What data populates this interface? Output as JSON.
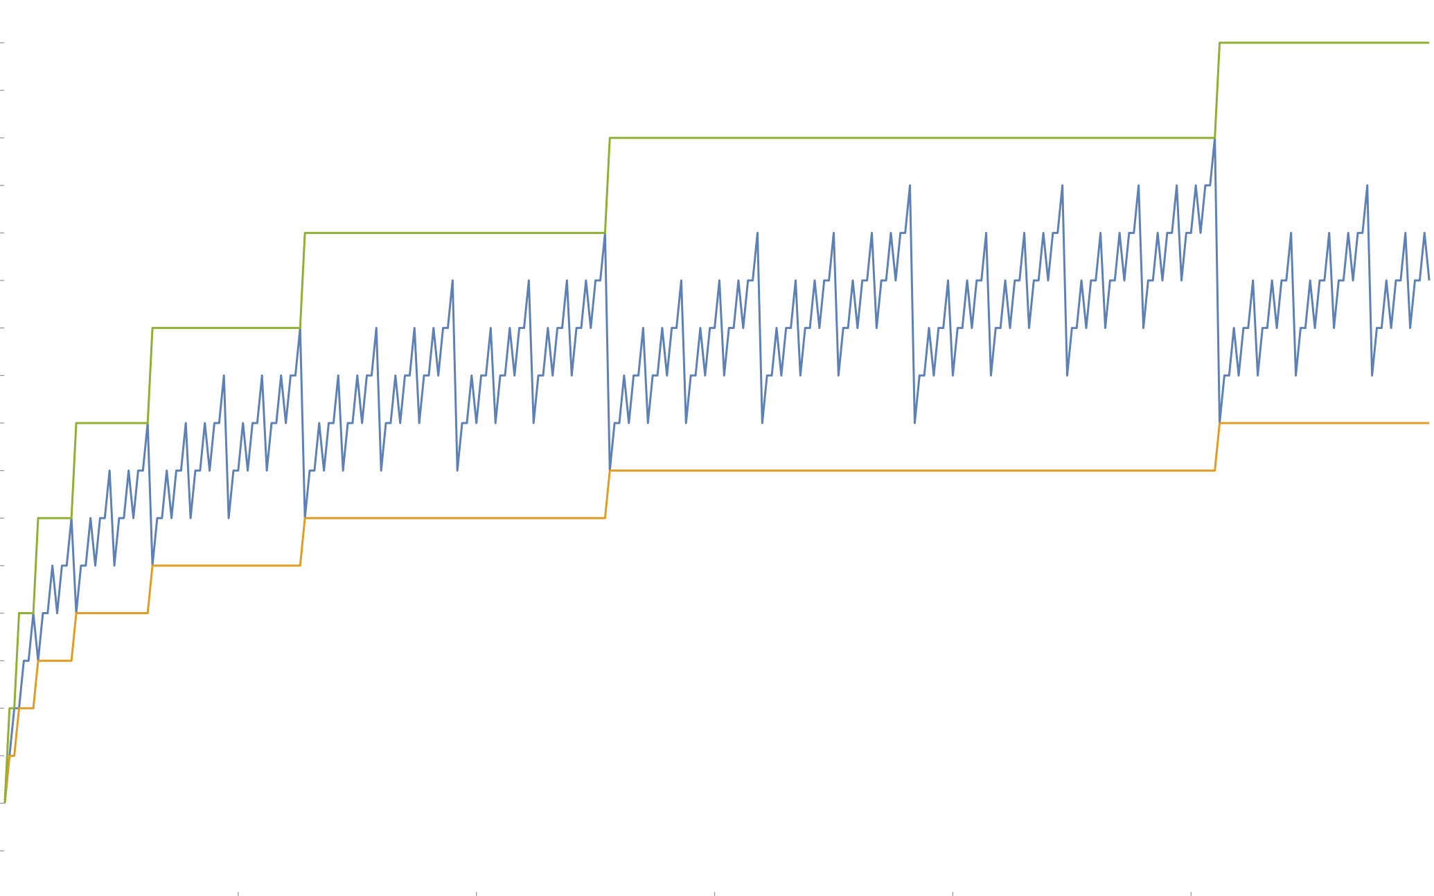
{
  "chart_data": {
    "type": "line",
    "xlim": [
      0,
      301
    ],
    "ylim": [
      -1.95,
      16.9
    ],
    "xticks": [
      50,
      100,
      150,
      200,
      250
    ],
    "yticks": [
      -1,
      0,
      1,
      2,
      3,
      4,
      5,
      6,
      7,
      8,
      9,
      10,
      11,
      12,
      13,
      14,
      15,
      16
    ],
    "x": [
      1,
      2,
      3,
      4,
      5,
      6,
      7,
      8,
      9,
      10,
      11,
      12,
      13,
      14,
      15,
      16,
      17,
      18,
      19,
      20,
      21,
      22,
      23,
      24,
      25,
      26,
      27,
      28,
      29,
      30,
      31,
      32,
      33,
      34,
      35,
      36,
      37,
      38,
      39,
      40,
      41,
      42,
      43,
      44,
      45,
      46,
      47,
      48,
      49,
      50,
      51,
      52,
      53,
      54,
      55,
      56,
      57,
      58,
      59,
      60,
      61,
      62,
      63,
      64,
      65,
      66,
      67,
      68,
      69,
      70,
      71,
      72,
      73,
      74,
      75,
      76,
      77,
      78,
      79,
      80,
      81,
      82,
      83,
      84,
      85,
      86,
      87,
      88,
      89,
      90,
      91,
      92,
      93,
      94,
      95,
      96,
      97,
      98,
      99,
      100,
      101,
      102,
      103,
      104,
      105,
      106,
      107,
      108,
      109,
      110,
      111,
      112,
      113,
      114,
      115,
      116,
      117,
      118,
      119,
      120,
      121,
      122,
      123,
      124,
      125,
      126,
      127,
      128,
      129,
      130,
      131,
      132,
      133,
      134,
      135,
      136,
      137,
      138,
      139,
      140,
      141,
      142,
      143,
      144,
      145,
      146,
      147,
      148,
      149,
      150,
      151,
      152,
      153,
      154,
      155,
      156,
      157,
      158,
      159,
      160,
      161,
      162,
      163,
      164,
      165,
      166,
      167,
      168,
      169,
      170,
      171,
      172,
      173,
      174,
      175,
      176,
      177,
      178,
      179,
      180,
      181,
      182,
      183,
      184,
      185,
      186,
      187,
      188,
      189,
      190,
      191,
      192,
      193,
      194,
      195,
      196,
      197,
      198,
      199,
      200,
      201,
      202,
      203,
      204,
      205,
      206,
      207,
      208,
      209,
      210,
      211,
      212,
      213,
      214,
      215,
      216,
      217,
      218,
      219,
      220,
      221,
      222,
      223,
      224,
      225,
      226,
      227,
      228,
      229,
      230,
      231,
      232,
      233,
      234,
      235,
      236,
      237,
      238,
      239,
      240,
      241,
      242,
      243,
      244,
      245,
      246,
      247,
      248,
      249,
      250,
      251,
      252,
      253,
      254,
      255,
      256,
      257,
      258,
      259,
      260,
      261,
      262,
      263,
      264,
      265,
      266,
      267,
      268,
      269,
      270,
      271,
      272,
      273,
      274,
      275,
      276,
      277,
      278,
      279,
      280,
      281,
      282,
      283,
      284,
      285,
      286,
      287,
      288,
      289,
      290,
      291,
      292,
      293,
      294,
      295,
      296,
      297,
      298,
      299,
      300
    ],
    "series": [
      {
        "color": "#5e81b5",
        "values": [
          0,
          1,
          2,
          2,
          3,
          3,
          4,
          3,
          4,
          4,
          5,
          4,
          5,
          5,
          6,
          4,
          5,
          5,
          6,
          5,
          6,
          6,
          7,
          5,
          6,
          6,
          7,
          6,
          7,
          7,
          8,
          5,
          6,
          6,
          7,
          6,
          7,
          7,
          8,
          6,
          7,
          7,
          8,
          7,
          8,
          8,
          9,
          6,
          7,
          7,
          8,
          7,
          8,
          8,
          9,
          7,
          8,
          8,
          9,
          8,
          9,
          9,
          10,
          6,
          7,
          7,
          8,
          7,
          8,
          8,
          9,
          7,
          8,
          8,
          9,
          8,
          9,
          9,
          10,
          7,
          8,
          8,
          9,
          8,
          9,
          9,
          10,
          8,
          9,
          9,
          10,
          9,
          10,
          10,
          11,
          7,
          8,
          8,
          9,
          8,
          9,
          9,
          10,
          8,
          9,
          9,
          10,
          9,
          10,
          10,
          11,
          8,
          9,
          9,
          10,
          9,
          10,
          10,
          11,
          9,
          10,
          10,
          11,
          10,
          11,
          11,
          12,
          7,
          8,
          8,
          9,
          8,
          9,
          9,
          10,
          8,
          9,
          9,
          10,
          9,
          10,
          10,
          11,
          8,
          9,
          9,
          10,
          9,
          10,
          10,
          11,
          9,
          10,
          10,
          11,
          10,
          11,
          11,
          12,
          8,
          9,
          9,
          10,
          9,
          10,
          10,
          11,
          9,
          10,
          10,
          11,
          10,
          11,
          11,
          12,
          9,
          10,
          10,
          11,
          10,
          11,
          11,
          12,
          10,
          11,
          11,
          12,
          11,
          12,
          12,
          13,
          8,
          9,
          9,
          10,
          9,
          10,
          10,
          11,
          9,
          10,
          10,
          11,
          10,
          11,
          11,
          12,
          9,
          10,
          10,
          11,
          10,
          11,
          11,
          12,
          10,
          11,
          11,
          12,
          11,
          12,
          12,
          13,
          9,
          10,
          10,
          11,
          10,
          11,
          11,
          12,
          10,
          11,
          11,
          12,
          11,
          12,
          12,
          13,
          10,
          11,
          11,
          12,
          11,
          12,
          12,
          13,
          11,
          12,
          12,
          13,
          12,
          13,
          13,
          14,
          8,
          9,
          9,
          10,
          9,
          10,
          10,
          11,
          9,
          10,
          10,
          11,
          10,
          11,
          11,
          12,
          9,
          10,
          10,
          11,
          10,
          11,
          11,
          12,
          10,
          11,
          11,
          12,
          11,
          12,
          12,
          13,
          9,
          10,
          10,
          11,
          10,
          11,
          11,
          12,
          10,
          11,
          11,
          12,
          11
        ]
      },
      {
        "color": "#e19c24",
        "values": [
          0,
          1,
          1,
          2,
          2,
          2,
          2,
          3,
          3,
          3,
          3,
          3,
          3,
          3,
          3,
          4,
          4,
          4,
          4,
          4,
          4,
          4,
          4,
          4,
          4,
          4,
          4,
          4,
          4,
          4,
          4,
          5,
          5,
          5,
          5,
          5,
          5,
          5,
          5,
          5,
          5,
          5,
          5,
          5,
          5,
          5,
          5,
          5,
          5,
          5,
          5,
          5,
          5,
          5,
          5,
          5,
          5,
          5,
          5,
          5,
          5,
          5,
          5,
          6,
          6,
          6,
          6,
          6,
          6,
          6,
          6,
          6,
          6,
          6,
          6,
          6,
          6,
          6,
          6,
          6,
          6,
          6,
          6,
          6,
          6,
          6,
          6,
          6,
          6,
          6,
          6,
          6,
          6,
          6,
          6,
          6,
          6,
          6,
          6,
          6,
          6,
          6,
          6,
          6,
          6,
          6,
          6,
          6,
          6,
          6,
          6,
          6,
          6,
          6,
          6,
          6,
          6,
          6,
          6,
          6,
          6,
          6,
          6,
          6,
          6,
          6,
          6,
          7,
          7,
          7,
          7,
          7,
          7,
          7,
          7,
          7,
          7,
          7,
          7,
          7,
          7,
          7,
          7,
          7,
          7,
          7,
          7,
          7,
          7,
          7,
          7,
          7,
          7,
          7,
          7,
          7,
          7,
          7,
          7,
          7,
          7,
          7,
          7,
          7,
          7,
          7,
          7,
          7,
          7,
          7,
          7,
          7,
          7,
          7,
          7,
          7,
          7,
          7,
          7,
          7,
          7,
          7,
          7,
          7,
          7,
          7,
          7,
          7,
          7,
          7,
          7,
          7,
          7,
          7,
          7,
          7,
          7,
          7,
          7,
          7,
          7,
          7,
          7,
          7,
          7,
          7,
          7,
          7,
          7,
          7,
          7,
          7,
          7,
          7,
          7,
          7,
          7,
          7,
          7,
          7,
          7,
          7,
          7,
          7,
          7,
          7,
          7,
          7,
          7,
          7,
          7,
          7,
          7,
          7,
          7,
          7,
          7,
          7,
          7,
          7,
          7,
          7,
          7,
          7,
          7,
          7,
          7,
          7,
          7,
          7,
          7,
          7,
          7,
          7,
          7,
          8,
          8,
          8,
          8,
          8,
          8,
          8,
          8,
          8,
          8,
          8,
          8,
          8,
          8,
          8,
          8,
          8,
          8,
          8,
          8,
          8,
          8,
          8,
          8,
          8,
          8,
          8,
          8,
          8,
          8,
          8,
          8,
          8,
          8,
          8,
          8,
          8,
          8,
          8,
          8,
          8,
          8,
          8,
          8,
          8
        ]
      },
      {
        "color": "#8fb032",
        "values": [
          0,
          2,
          2,
          4,
          4,
          4,
          4,
          6,
          6,
          6,
          6,
          6,
          6,
          6,
          6,
          8,
          8,
          8,
          8,
          8,
          8,
          8,
          8,
          8,
          8,
          8,
          8,
          8,
          8,
          8,
          8,
          10,
          10,
          10,
          10,
          10,
          10,
          10,
          10,
          10,
          10,
          10,
          10,
          10,
          10,
          10,
          10,
          10,
          10,
          10,
          10,
          10,
          10,
          10,
          10,
          10,
          10,
          10,
          10,
          10,
          10,
          10,
          10,
          12,
          12,
          12,
          12,
          12,
          12,
          12,
          12,
          12,
          12,
          12,
          12,
          12,
          12,
          12,
          12,
          12,
          12,
          12,
          12,
          12,
          12,
          12,
          12,
          12,
          12,
          12,
          12,
          12,
          12,
          12,
          12,
          12,
          12,
          12,
          12,
          12,
          12,
          12,
          12,
          12,
          12,
          12,
          12,
          12,
          12,
          12,
          12,
          12,
          12,
          12,
          12,
          12,
          12,
          12,
          12,
          12,
          12,
          12,
          12,
          12,
          12,
          12,
          12,
          14,
          14,
          14,
          14,
          14,
          14,
          14,
          14,
          14,
          14,
          14,
          14,
          14,
          14,
          14,
          14,
          14,
          14,
          14,
          14,
          14,
          14,
          14,
          14,
          14,
          14,
          14,
          14,
          14,
          14,
          14,
          14,
          14,
          14,
          14,
          14,
          14,
          14,
          14,
          14,
          14,
          14,
          14,
          14,
          14,
          14,
          14,
          14,
          14,
          14,
          14,
          14,
          14,
          14,
          14,
          14,
          14,
          14,
          14,
          14,
          14,
          14,
          14,
          14,
          14,
          14,
          14,
          14,
          14,
          14,
          14,
          14,
          14,
          14,
          14,
          14,
          14,
          14,
          14,
          14,
          14,
          14,
          14,
          14,
          14,
          14,
          14,
          14,
          14,
          14,
          14,
          14,
          14,
          14,
          14,
          14,
          14,
          14,
          14,
          14,
          14,
          14,
          14,
          14,
          14,
          14,
          14,
          14,
          14,
          14,
          14,
          14,
          14,
          14,
          14,
          14,
          14,
          14,
          14,
          14,
          14,
          14,
          14,
          14,
          14,
          14,
          14,
          14,
          16,
          16,
          16,
          16,
          16,
          16,
          16,
          16,
          16,
          16,
          16,
          16,
          16,
          16,
          16,
          16,
          16,
          16,
          16,
          16,
          16,
          16,
          16,
          16,
          16,
          16,
          16,
          16,
          16,
          16,
          16,
          16,
          16,
          16,
          16,
          16,
          16,
          16,
          16,
          16,
          16,
          16,
          16,
          16,
          16
        ]
      }
    ]
  }
}
